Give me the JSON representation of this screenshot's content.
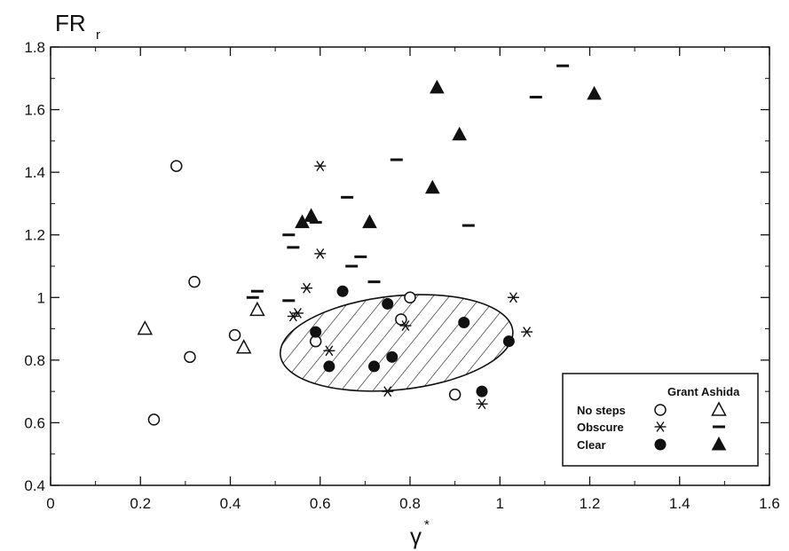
{
  "chart_data": {
    "type": "scatter",
    "title": "",
    "ylabel": "FR",
    "ylabel_subscript": "r",
    "xlabel": "γ",
    "xlabel_superscript": "*",
    "xlim": [
      0,
      1.6
    ],
    "ylim": [
      0.4,
      1.8
    ],
    "x_ticks": [
      "0",
      "0.2",
      "0.4",
      "0.6",
      "0.8",
      "1",
      "1.2",
      "1.4",
      "1.6"
    ],
    "y_ticks": [
      "0.4",
      "0.6",
      "0.8",
      "1",
      "1.2",
      "1.4",
      "1.6",
      "1.8"
    ],
    "grid": false,
    "legend": {
      "placement": "bottom-right",
      "column_headers": [
        "Grant",
        "Ashida"
      ],
      "row_labels": [
        "No steps",
        "Obscure",
        "Clear"
      ]
    },
    "series": [
      {
        "name": "No steps (Grant)",
        "marker": "open-circle",
        "x": [
          0.28,
          0.32,
          0.23,
          0.31,
          0.41,
          0.59,
          0.78,
          0.8,
          0.9
        ],
        "y": [
          1.42,
          1.05,
          0.61,
          0.81,
          0.88,
          0.86,
          0.93,
          1.0,
          0.69
        ]
      },
      {
        "name": "Obscure (Grant)",
        "marker": "asterisk",
        "x": [
          0.6,
          0.6,
          0.57,
          0.54,
          0.55,
          0.62,
          0.75,
          0.79,
          0.96,
          1.03,
          1.06
        ],
        "y": [
          1.42,
          1.14,
          1.03,
          0.94,
          0.95,
          0.83,
          0.7,
          0.91,
          0.66,
          1.0,
          0.89
        ]
      },
      {
        "name": "Clear (Grant)",
        "marker": "filled-circle",
        "x": [
          0.59,
          0.62,
          0.65,
          0.72,
          0.75,
          0.76,
          0.92,
          0.96,
          1.02
        ],
        "y": [
          0.89,
          0.78,
          1.02,
          0.78,
          0.98,
          0.81,
          0.92,
          0.7,
          0.86
        ]
      },
      {
        "name": "No steps (Ashida)",
        "marker": "open-triangle",
        "x": [
          0.21,
          0.43,
          0.46
        ],
        "y": [
          0.9,
          0.84,
          0.96
        ]
      },
      {
        "name": "Obscure (Ashida)",
        "marker": "dash",
        "x": [
          0.53,
          0.54,
          0.59,
          0.66,
          0.67,
          0.69,
          0.72,
          0.77,
          0.93,
          1.08,
          1.14,
          0.45,
          0.46,
          0.53
        ],
        "y": [
          1.2,
          1.16,
          1.24,
          1.32,
          1.1,
          1.13,
          1.05,
          1.44,
          1.23,
          1.64,
          1.74,
          1.0,
          1.02,
          0.99
        ]
      },
      {
        "name": "Clear (Ashida)",
        "marker": "filled-triangle",
        "x": [
          0.56,
          0.58,
          0.71,
          0.85,
          0.86,
          0.91,
          1.21
        ],
        "y": [
          1.24,
          1.26,
          1.24,
          1.35,
          1.67,
          1.52,
          1.65
        ]
      }
    ],
    "ellipse_region": {
      "hatched": true,
      "center": [
        0.77,
        0.855
      ],
      "rx": 0.26,
      "ry": 0.15,
      "rotation_deg": -6
    }
  }
}
